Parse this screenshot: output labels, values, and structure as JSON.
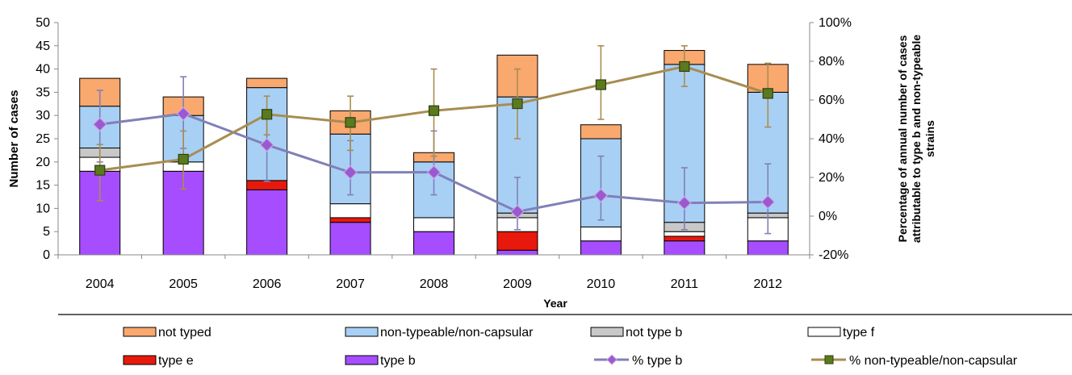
{
  "chart_data": {
    "type": "bar",
    "stacked": true,
    "categories": [
      "2004",
      "2005",
      "2006",
      "2007",
      "2008",
      "2009",
      "2010",
      "2011",
      "2012"
    ],
    "xlabel": "Year",
    "ylabel": "Number of cases",
    "y2label_lines": [
      "Percentage of annual number of cases",
      "attributable to  type b and non-typeable",
      "strains"
    ],
    "ylim": [
      0,
      50
    ],
    "yticks": [
      0,
      5,
      10,
      15,
      20,
      25,
      30,
      35,
      40,
      45,
      50
    ],
    "y2lim": [
      -20,
      100
    ],
    "y2ticks": [
      -20,
      0,
      20,
      40,
      60,
      80,
      100
    ],
    "y2tick_labels": [
      "-20%",
      "0%",
      "20%",
      "40%",
      "60%",
      "80%",
      "100%"
    ],
    "grid": false,
    "legend_position": "bottom",
    "series": [
      {
        "name": "type b",
        "color": "#a64dff",
        "values": [
          18,
          18,
          14,
          7,
          5,
          1,
          3,
          3,
          3
        ]
      },
      {
        "name": "type  e",
        "color": "#e8190c",
        "values": [
          0,
          0,
          2,
          1,
          0,
          4,
          0,
          1,
          0
        ]
      },
      {
        "name": "type f",
        "color": "#ffffff",
        "values": [
          3,
          2,
          0,
          3,
          3,
          3,
          3,
          1,
          5
        ]
      },
      {
        "name": "not type b",
        "color": "#c8c8c8",
        "values": [
          2,
          0,
          0,
          0,
          0,
          1,
          0,
          2,
          1
        ]
      },
      {
        "name": "non-typeable/non-capsular",
        "color": "#a8d0f5",
        "values": [
          9,
          10,
          20,
          15,
          12,
          25,
          19,
          34,
          26
        ]
      },
      {
        "name": "not typed",
        "color": "#f9a86e",
        "values": [
          6,
          4,
          2,
          5,
          2,
          9,
          3,
          3,
          6
        ]
      }
    ],
    "lines": [
      {
        "name": "% type b",
        "axis": "right",
        "color": "#8080b8",
        "marker": "diamond",
        "marker_color": "#9b59d0",
        "values": [
          47.4,
          52.9,
          36.8,
          22.6,
          22.7,
          2.3,
          10.7,
          6.8,
          7.3
        ],
        "ci_lower": [
          28,
          35,
          18,
          11,
          11,
          -7,
          -2,
          -7,
          -9
        ],
        "ci_upper": [
          65,
          72,
          53,
          39,
          44,
          20,
          31,
          25,
          27
        ]
      },
      {
        "name": "% non-typeable/non-capsular",
        "axis": "right",
        "color": "#a88d50",
        "marker": "square",
        "marker_color": "#5a7a1e",
        "values": [
          23.7,
          29.4,
          52.6,
          48.4,
          54.5,
          58.1,
          67.9,
          77.3,
          63.4
        ],
        "ci_lower": [
          8,
          14,
          42,
          34,
          31,
          40,
          50,
          67,
          46
        ],
        "ci_upper": [
          37,
          44,
          62,
          62,
          76,
          76,
          88,
          88,
          79
        ]
      }
    ],
    "legend_order": [
      "not typed",
      "non-typeable/non-capsular",
      "not type b",
      "type f",
      "type  e",
      "type b",
      "% type b",
      "% non-typeable/non-capsular"
    ]
  }
}
